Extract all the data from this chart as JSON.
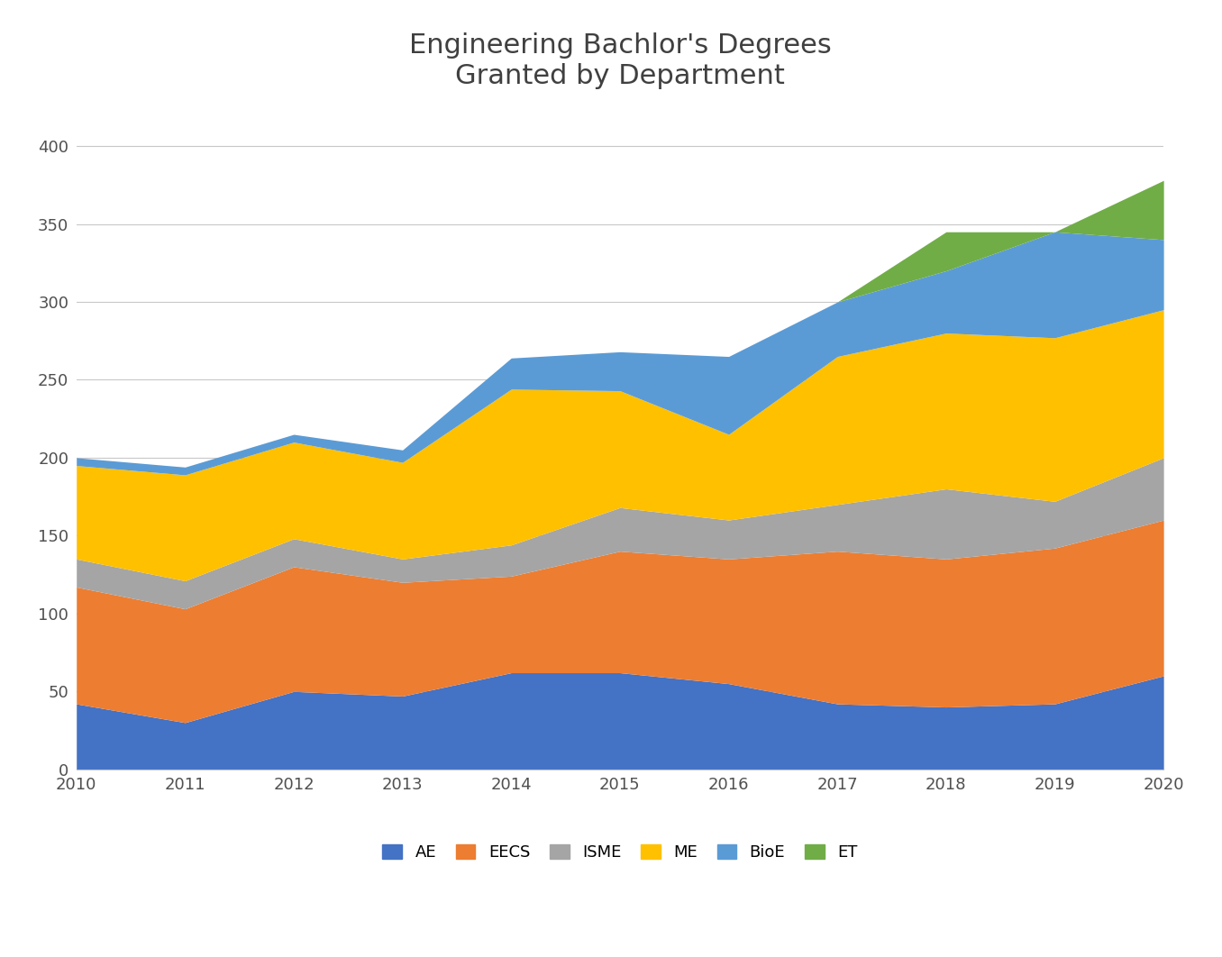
{
  "title": "Engineering Bachlor's Degrees\nGranted by Department",
  "years": [
    2010,
    2011,
    2012,
    2013,
    2014,
    2015,
    2016,
    2017,
    2018,
    2019,
    2020
  ],
  "series": {
    "AE": [
      42,
      30,
      50,
      47,
      62,
      62,
      55,
      42,
      40,
      42,
      60
    ],
    "EECS": [
      75,
      73,
      80,
      73,
      62,
      78,
      80,
      98,
      95,
      100,
      100
    ],
    "ISME": [
      18,
      18,
      18,
      15,
      20,
      28,
      25,
      30,
      45,
      30,
      40
    ],
    "ME": [
      60,
      68,
      62,
      62,
      100,
      75,
      55,
      95,
      100,
      105,
      95
    ],
    "BioE": [
      5,
      5,
      5,
      8,
      20,
      25,
      50,
      35,
      40,
      68,
      45
    ],
    "ET": [
      0,
      0,
      0,
      0,
      0,
      0,
      0,
      0,
      25,
      0,
      38
    ]
  },
  "colors": {
    "AE": "#4472c4",
    "EECS": "#ed7d31",
    "ISME": "#a5a5a5",
    "ME": "#ffc000",
    "BioE": "#5b9bd5",
    "ET": "#70ad47"
  },
  "ylim": [
    0,
    420
  ],
  "yticks": [
    0,
    50,
    100,
    150,
    200,
    250,
    300,
    350,
    400
  ],
  "background_color": "#ffffff",
  "title_fontsize": 22,
  "title_color": "#404040"
}
